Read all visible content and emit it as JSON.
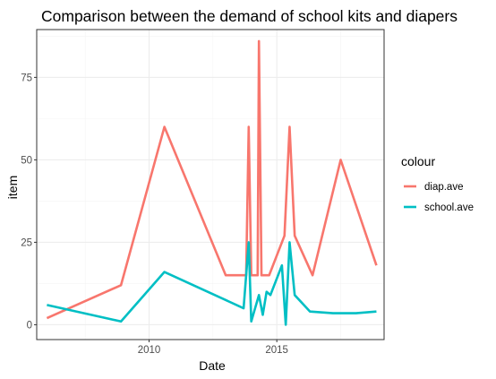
{
  "chart_data": {
    "type": "line",
    "title": "Comparison between the demand of school kits and diapers",
    "xlabel": "Date",
    "ylabel": "item",
    "x_type": "year",
    "xlim": [
      2005.6,
      2019.2
    ],
    "ylim": [
      -4.5,
      89.5
    ],
    "x_ticks": [
      2010,
      2015
    ],
    "x_minor_ticks": [
      2007.5,
      2012.5,
      2017.5
    ],
    "y_ticks": [
      0,
      25,
      50,
      75
    ],
    "y_minor_ticks": [
      12.5,
      37.5,
      62.5,
      87.5
    ],
    "grid": true,
    "legend": {
      "title": "colour",
      "position": "right"
    },
    "series": [
      {
        "name": "diap.ave",
        "color": "#F8766D",
        "points": [
          [
            2006.0,
            2
          ],
          [
            2008.9,
            12
          ],
          [
            2010.6,
            60
          ],
          [
            2013.0,
            15
          ],
          [
            2013.8,
            15
          ],
          [
            2013.9,
            60
          ],
          [
            2014.0,
            15
          ],
          [
            2014.25,
            15
          ],
          [
            2014.3,
            86
          ],
          [
            2014.4,
            15
          ],
          [
            2014.7,
            15
          ],
          [
            2015.3,
            27
          ],
          [
            2015.5,
            60
          ],
          [
            2015.7,
            27
          ],
          [
            2016.4,
            15
          ],
          [
            2017.5,
            50
          ],
          [
            2018.9,
            18
          ]
        ]
      },
      {
        "name": "school.ave",
        "color": "#00BFC4",
        "points": [
          [
            2006.0,
            6
          ],
          [
            2008.9,
            1
          ],
          [
            2010.6,
            16
          ],
          [
            2013.7,
            5
          ],
          [
            2013.9,
            25
          ],
          [
            2014.0,
            1
          ],
          [
            2014.3,
            9
          ],
          [
            2014.45,
            3
          ],
          [
            2014.6,
            10
          ],
          [
            2014.75,
            9
          ],
          [
            2015.2,
            18
          ],
          [
            2015.35,
            0
          ],
          [
            2015.5,
            25
          ],
          [
            2015.7,
            9
          ],
          [
            2016.3,
            4
          ],
          [
            2017.2,
            3.5
          ],
          [
            2018.1,
            3.5
          ],
          [
            2018.9,
            4
          ]
        ]
      }
    ]
  }
}
